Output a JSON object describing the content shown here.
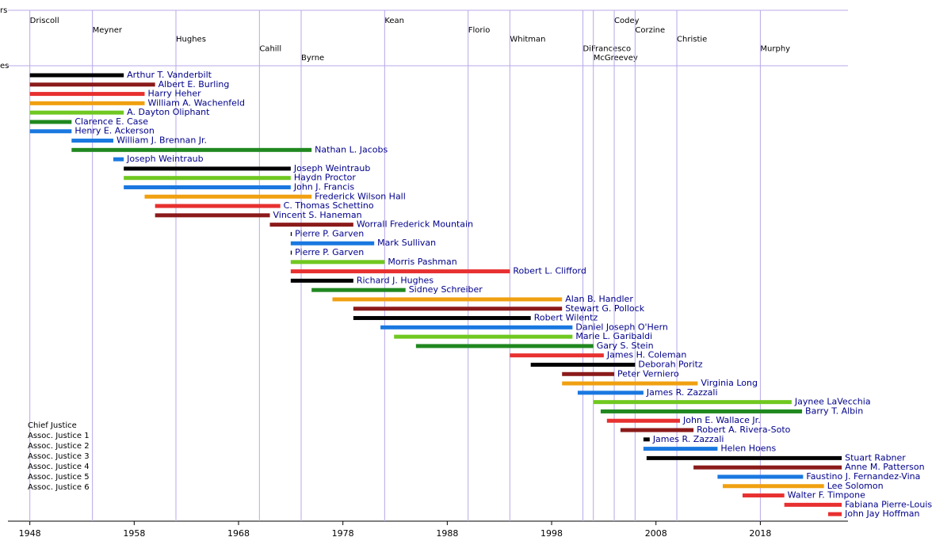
{
  "chart_data": {
    "type": "timeline",
    "row_labels": [
      "rs",
      "es"
    ],
    "xlim": [
      1945.9,
      2026.4
    ],
    "xticks": [
      1948,
      1958,
      1968,
      1978,
      1988,
      1998,
      2008,
      2018
    ],
    "governor_color": "#b8a8e8",
    "governors": [
      {
        "name": "Driscoll",
        "start": 1948
      },
      {
        "name": "Meyner",
        "start": 1954
      },
      {
        "name": "Hughes",
        "start": 1962
      },
      {
        "name": "Cahill",
        "start": 1970
      },
      {
        "name": "Byrne",
        "start": 1974
      },
      {
        "name": "Kean",
        "start": 1982
      },
      {
        "name": "Florio",
        "start": 1990
      },
      {
        "name": "Whitman",
        "start": 1994
      },
      {
        "name": "DiFrancesco",
        "start": 2001
      },
      {
        "name": "McGreevey",
        "start": 2002
      },
      {
        "name": "Codey",
        "start": 2004
      },
      {
        "name": "Corzine",
        "start": 2006
      },
      {
        "name": "Christie",
        "start": 2010
      },
      {
        "name": "Murphy",
        "start": 2018
      }
    ],
    "seats": [
      {
        "name": "Chief Justice",
        "color": "#000000"
      },
      {
        "name": "Assoc. Justice 1",
        "color": "#8b1a1a"
      },
      {
        "name": "Assoc. Justice 2",
        "color": "#e83030"
      },
      {
        "name": "Assoc. Justice 3",
        "color": "#f0a010"
      },
      {
        "name": "Assoc. Justice 4",
        "color": "#70c820"
      },
      {
        "name": "Assoc. Justice 5",
        "color": "#208820"
      },
      {
        "name": "Assoc. Justice 6",
        "color": "#1a78e0"
      }
    ],
    "justices": [
      {
        "name": "Arthur T. Vanderbilt",
        "start": 1948,
        "end": 1957,
        "color": "#000000"
      },
      {
        "name": "Albert E. Burling",
        "start": 1948,
        "end": 1960,
        "color": "#8b1a1a"
      },
      {
        "name": "Harry Heher",
        "start": 1948,
        "end": 1959,
        "color": "#e83030"
      },
      {
        "name": "William A. Wachenfeld",
        "start": 1948,
        "end": 1959,
        "color": "#f0a010"
      },
      {
        "name": "A. Dayton Oliphant",
        "start": 1948,
        "end": 1957,
        "color": "#70c820"
      },
      {
        "name": "Clarence E. Case",
        "start": 1948,
        "end": 1952,
        "color": "#208820"
      },
      {
        "name": "Henry E. Ackerson",
        "start": 1948,
        "end": 1952,
        "color": "#1a78e0"
      },
      {
        "name": "William J. Brennan Jr.",
        "start": 1952,
        "end": 1956,
        "color": "#1a78e0"
      },
      {
        "name": "Nathan L. Jacobs",
        "start": 1952,
        "end": 1975,
        "color": "#208820"
      },
      {
        "name": "Joseph Weintraub",
        "start": 1956,
        "end": 1957,
        "color": "#1a78e0"
      },
      {
        "name": "Joseph Weintraub",
        "start": 1957,
        "end": 1973,
        "color": "#000000"
      },
      {
        "name": "Haydn Proctor",
        "start": 1957,
        "end": 1973,
        "color": "#70c820"
      },
      {
        "name": "John J. Francis",
        "start": 1957,
        "end": 1973,
        "color": "#1a78e0"
      },
      {
        "name": "Frederick Wilson Hall",
        "start": 1959,
        "end": 1975,
        "color": "#f0a010"
      },
      {
        "name": "C. Thomas Schettino",
        "start": 1960,
        "end": 1972,
        "color": "#e83030"
      },
      {
        "name": "Vincent S. Haneman",
        "start": 1960,
        "end": 1971,
        "color": "#8b1a1a"
      },
      {
        "name": "Worrall Frederick Mountain",
        "start": 1971,
        "end": 1979,
        "color": "#8b1a1a"
      },
      {
        "name": "Pierre P. Garven",
        "start": 1973,
        "end": 1973.1,
        "color": "#000000"
      },
      {
        "name": "Mark Sullivan",
        "start": 1973,
        "end": 1981,
        "color": "#1a78e0"
      },
      {
        "name": "Pierre P. Garven",
        "start": 1973,
        "end": 1973.1,
        "color": "#000000"
      },
      {
        "name": "Morris Pashman",
        "start": 1973,
        "end": 1982,
        "color": "#70c820"
      },
      {
        "name": "Robert L. Clifford",
        "start": 1973,
        "end": 1994,
        "color": "#e83030"
      },
      {
        "name": "Richard J. Hughes",
        "start": 1973,
        "end": 1979,
        "color": "#000000"
      },
      {
        "name": "Sidney Schreiber",
        "start": 1975,
        "end": 1984,
        "color": "#208820"
      },
      {
        "name": "Alan B. Handler",
        "start": 1977,
        "end": 1999,
        "color": "#f0a010"
      },
      {
        "name": "Stewart G. Pollock",
        "start": 1979,
        "end": 1999,
        "color": "#8b1a1a"
      },
      {
        "name": "Robert Wilentz",
        "start": 1979,
        "end": 1996,
        "color": "#000000"
      },
      {
        "name": "Daniel Joseph O'Hern",
        "start": 1981.6,
        "end": 2000,
        "color": "#1a78e0"
      },
      {
        "name": "Marie L. Garibaldi",
        "start": 1982.9,
        "end": 2000,
        "color": "#70c820"
      },
      {
        "name": "Gary S. Stein",
        "start": 1985,
        "end": 2002,
        "color": "#208820"
      },
      {
        "name": "James H. Coleman",
        "start": 1994,
        "end": 2003,
        "color": "#e83030"
      },
      {
        "name": "Deborah Poritz",
        "start": 1996,
        "end": 2006,
        "color": "#000000"
      },
      {
        "name": "Peter Verniero",
        "start": 1999,
        "end": 2004,
        "color": "#8b1a1a"
      },
      {
        "name": "Virginia Long",
        "start": 1999,
        "end": 2012,
        "color": "#f0a010"
      },
      {
        "name": "James R. Zazzali",
        "start": 2000.5,
        "end": 2006.8,
        "color": "#1a78e0"
      },
      {
        "name": "Jaynee LaVecchia",
        "start": 2002,
        "end": 2021,
        "color": "#70c820"
      },
      {
        "name": "Barry T. Albin",
        "start": 2002.7,
        "end": 2022,
        "color": "#208820"
      },
      {
        "name": "John E. Wallace Jr.",
        "start": 2003.3,
        "end": 2010.3,
        "color": "#e83030"
      },
      {
        "name": "Robert A. Rivera-Soto",
        "start": 2004.6,
        "end": 2011.6,
        "color": "#8b1a1a"
      },
      {
        "name": "James R. Zazzali",
        "start": 2006.8,
        "end": 2007.4,
        "color": "#000000"
      },
      {
        "name": "Helen Hoens",
        "start": 2006.8,
        "end": 2013.9,
        "color": "#1a78e0"
      },
      {
        "name": "Stuart Rabner",
        "start": 2007.1,
        "end": 2025.8,
        "color": "#000000"
      },
      {
        "name": "Anne M. Patterson",
        "start": 2011.6,
        "end": 2025.8,
        "color": "#8b1a1a"
      },
      {
        "name": "Faustino J. Fernandez-Vina",
        "start": 2013.9,
        "end": 2022.1,
        "color": "#1a78e0"
      },
      {
        "name": "Lee Solomon",
        "start": 2014.4,
        "end": 2024.1,
        "color": "#f0a010"
      },
      {
        "name": "Walter F. Timpone",
        "start": 2016.3,
        "end": 2020.3,
        "color": "#e83030"
      },
      {
        "name": "Fabiana Pierre-Louis",
        "start": 2020.3,
        "end": 2025.8,
        "color": "#e83030"
      },
      {
        "name": "John Jay Hoffman",
        "start": 2024.5,
        "end": 2025.8,
        "color": "#e83030"
      }
    ]
  }
}
